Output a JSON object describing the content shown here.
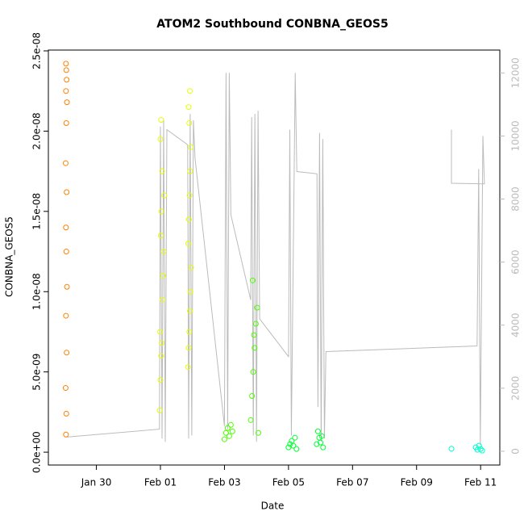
{
  "chart_data": {
    "type": "scatter",
    "title": "ATOM2 Southbound CONBNA_GEOS5",
    "x_label": "Date",
    "y_label": "CONBNA_GEOS5",
    "xlim": [
      28.5,
      42.6
    ],
    "xticks": [
      {
        "value": 30,
        "label": "Jan 30"
      },
      {
        "value": 32,
        "label": "Feb 01"
      },
      {
        "value": 34,
        "label": "Feb 03"
      },
      {
        "value": 36,
        "label": "Feb 05"
      },
      {
        "value": 38,
        "label": "Feb 07"
      },
      {
        "value": 40,
        "label": "Feb 09"
      },
      {
        "value": 42,
        "label": "Feb 11"
      }
    ],
    "ylim": [
      -8e-10,
      2.505e-08
    ],
    "yticks": [
      {
        "value": 0,
        "label": "0.0e+00"
      },
      {
        "value": 5e-09,
        "label": "5.0e-09"
      },
      {
        "value": 1e-08,
        "label": "1.0e-08"
      },
      {
        "value": 1.5e-08,
        "label": "1.5e-08"
      },
      {
        "value": 2e-08,
        "label": "2.0e-08"
      },
      {
        "value": 2.5e-08,
        "label": "2.5e-08"
      }
    ],
    "y2lim": [
      -437,
      12725
    ],
    "y2ticks": [
      0,
      2000,
      4000,
      6000,
      8000,
      10000,
      12000
    ],
    "series": [
      {
        "color": "#ff8000",
        "x": [
          29.05,
          29.06,
          29.04,
          29.07,
          29.05,
          29.08,
          29.06,
          29.05,
          29.07,
          29.04,
          29.06,
          29.08,
          29.05,
          29.07,
          29.06,
          29.05
        ],
        "values": [
          1.1e-09,
          2.4e-09,
          4e-09,
          6.2e-09,
          8.5e-09,
          1.03e-08,
          1.25e-08,
          1.4e-08,
          1.62e-08,
          1.8e-08,
          2.05e-08,
          2.18e-08,
          2.25e-08,
          2.32e-08,
          2.38e-08,
          2.42e-08
        ]
      },
      {
        "color": "#e6ff00",
        "x": [
          31.98,
          32.0,
          32.02,
          32.04,
          31.99,
          32.06,
          32.08,
          32.1,
          32.01,
          32.03,
          32.12,
          32.05,
          32.0,
          32.02
        ],
        "values": [
          2.6e-09,
          4.5e-09,
          6e-09,
          6.8e-09,
          7.5e-09,
          9.5e-09,
          1.1e-08,
          1.25e-08,
          1.35e-08,
          1.5e-08,
          1.6e-08,
          1.75e-08,
          1.95e-08,
          2.07e-08
        ]
      },
      {
        "color": "#e6ff00",
        "x": [
          32.86,
          32.88,
          32.9,
          32.92,
          32.94,
          32.96,
          32.87,
          32.89,
          32.91,
          32.93,
          32.95,
          32.9,
          32.88,
          32.92
        ],
        "values": [
          5.3e-09,
          6.5e-09,
          7.5e-09,
          8.8e-09,
          1e-08,
          1.15e-08,
          1.3e-08,
          1.45e-08,
          1.6e-08,
          1.75e-08,
          1.9e-08,
          2.05e-08,
          2.15e-08,
          2.25e-08
        ]
      },
      {
        "color": "#4dff00",
        "x": [
          34.0,
          34.05,
          34.1,
          34.15,
          34.2,
          34.25,
          34.82,
          34.86,
          34.9,
          34.94,
          34.98,
          35.02,
          35.06,
          34.88,
          34.92
        ],
        "values": [
          8e-10,
          1.2e-09,
          1.5e-09,
          1e-09,
          1.7e-09,
          1.3e-09,
          2e-09,
          3.5e-09,
          5e-09,
          6.5e-09,
          8e-09,
          9e-09,
          1.2e-09,
          1.07e-08,
          7.3e-09
        ]
      },
      {
        "color": "#00ff33",
        "x": [
          36.0,
          36.05,
          36.1,
          36.15,
          36.2,
          36.25,
          36.88,
          36.92,
          36.96,
          37.0,
          37.04,
          37.08
        ],
        "values": [
          3e-10,
          5e-10,
          7e-10,
          4e-10,
          9e-10,
          2e-10,
          5e-10,
          1.3e-09,
          9e-10,
          6e-10,
          1e-09,
          3e-10
        ]
      },
      {
        "color": "#00ffcc",
        "x": [
          41.09,
          41.85,
          41.9,
          41.95,
          42.0,
          42.05
        ],
        "values": [
          2.2e-10,
          3e-10,
          1.5e-10,
          4e-10,
          2e-10,
          1e-10
        ]
      },
      {
        "type": "line",
        "axis": "y2",
        "color": "#bbbbbb",
        "x": [
          29.07,
          31.97,
          32.0,
          32.05,
          32.1,
          32.15,
          32.2,
          32.85,
          32.88,
          32.93,
          32.98,
          33.03,
          33.08,
          34.0,
          34.05,
          34.1,
          34.15,
          34.2,
          34.82,
          34.85,
          34.9,
          34.95,
          35.0,
          35.05,
          35.1,
          36.0,
          36.04,
          36.09,
          36.21,
          36.26,
          36.89,
          36.92,
          36.97,
          37.02,
          37.07,
          37.12,
          37.17,
          41.89,
          41.94,
          41.99,
          42.07,
          42.12,
          41.09,
          41.09
        ],
        "values": [
          450,
          700,
          10300,
          400,
          10500,
          300,
          10200,
          9720,
          400,
          10700,
          500,
          10500,
          9300,
          800,
          12000,
          700,
          12000,
          7500,
          4800,
          10600,
          500,
          10700,
          300,
          10800,
          4200,
          3000,
          10200,
          500,
          12000,
          8870,
          8800,
          1400,
          10100,
          300,
          9900,
          400,
          3160,
          3340,
          8950,
          200,
          10000,
          8480,
          8500,
          10200
        ]
      }
    ]
  }
}
